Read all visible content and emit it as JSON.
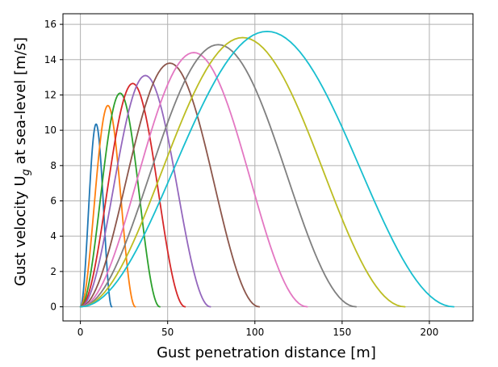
{
  "chart_data": {
    "type": "line",
    "title": "",
    "xlabel": "Gust penetration distance [m]",
    "ylabel_prefix": "Gust velocity U",
    "ylabel_sub": "g",
    "ylabel_suffix": " at sea-level [m/s]",
    "xlim": [
      -10,
      225
    ],
    "ylim": [
      -0.8,
      16.6
    ],
    "xticks": [
      0,
      50,
      100,
      150,
      200
    ],
    "yticks": [
      0,
      2,
      4,
      6,
      8,
      10,
      12,
      14,
      16
    ],
    "grid": true,
    "legend": "none",
    "curve_shape": "1-cosine",
    "series": [
      {
        "gust_length_m": 18,
        "peak_velocity": 10.35,
        "color": "#1f77b4"
      },
      {
        "gust_length_m": 31.5,
        "peak_velocity": 11.4,
        "color": "#ff7f0e"
      },
      {
        "gust_length_m": 45.5,
        "peak_velocity": 12.1,
        "color": "#2ca02c"
      },
      {
        "gust_length_m": 60,
        "peak_velocity": 12.65,
        "color": "#d62728"
      },
      {
        "gust_length_m": 74.5,
        "peak_velocity": 13.1,
        "color": "#9467bd"
      },
      {
        "gust_length_m": 102.5,
        "peak_velocity": 13.8,
        "color": "#8c564b"
      },
      {
        "gust_length_m": 130,
        "peak_velocity": 14.4,
        "color": "#e377c2"
      },
      {
        "gust_length_m": 158,
        "peak_velocity": 14.85,
        "color": "#7f7f7f"
      },
      {
        "gust_length_m": 186,
        "peak_velocity": 15.25,
        "color": "#bcbd22"
      },
      {
        "gust_length_m": 214,
        "peak_velocity": 15.6,
        "color": "#17becf"
      }
    ]
  }
}
